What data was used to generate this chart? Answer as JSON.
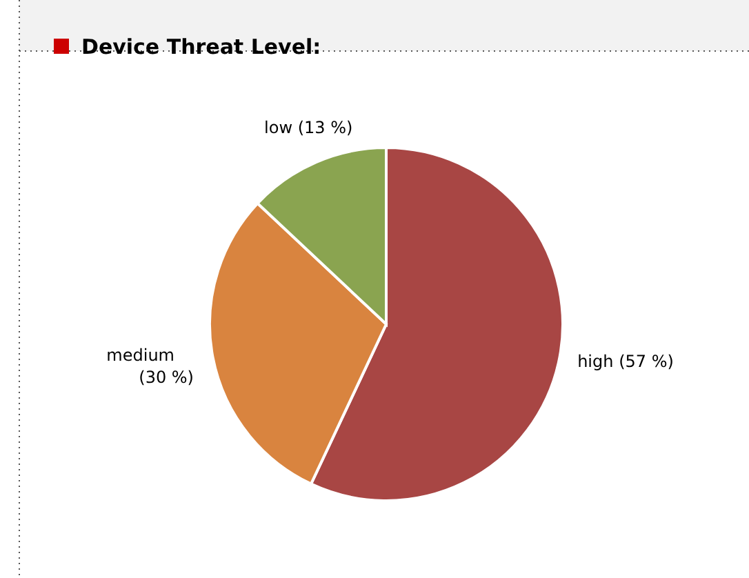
{
  "chart_data": {
    "type": "pie",
    "title": "Device Threat Level:",
    "categories": [
      "high",
      "medium",
      "low"
    ],
    "values": [
      57,
      30,
      13
    ],
    "value_labels": [
      "(57 %)",
      "(30 %)",
      "(13 %)"
    ],
    "colors": [
      "#a84644",
      "#d9843f",
      "#8aa450"
    ]
  }
}
